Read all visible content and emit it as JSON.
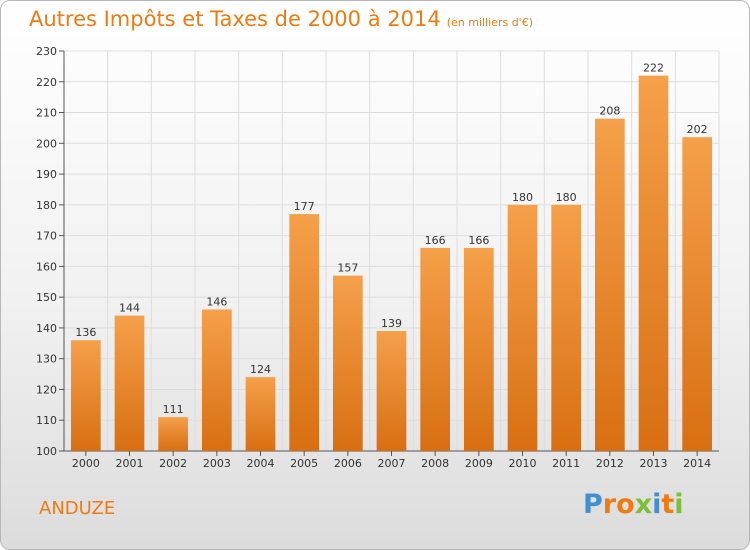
{
  "chart_data": {
    "type": "bar",
    "title": "Autres Impôts et Taxes de 2000 à 2014",
    "subtitle": "(en milliers d'€)",
    "categories": [
      "2000",
      "2001",
      "2002",
      "2003",
      "2004",
      "2005",
      "2006",
      "2007",
      "2008",
      "2009",
      "2010",
      "2011",
      "2012",
      "2013",
      "2014"
    ],
    "values": [
      136,
      144,
      111,
      146,
      124,
      177,
      157,
      139,
      166,
      166,
      180,
      180,
      208,
      222,
      202
    ],
    "ylim": [
      100,
      230
    ],
    "yticks": [
      100,
      110,
      120,
      130,
      140,
      150,
      160,
      170,
      180,
      190,
      200,
      210,
      220,
      230
    ],
    "grid": true,
    "bar_color": "#f5a04a",
    "bar_color_dark": "#d86f12"
  },
  "location": "ANDUZE",
  "logo": {
    "text": "Proxiti",
    "colors": [
      "#3f8fd1",
      "#f07a10",
      "#f07a10",
      "#7bbf3a",
      "#3f8fd1",
      "#f07a10",
      "#7bbf3a"
    ]
  }
}
